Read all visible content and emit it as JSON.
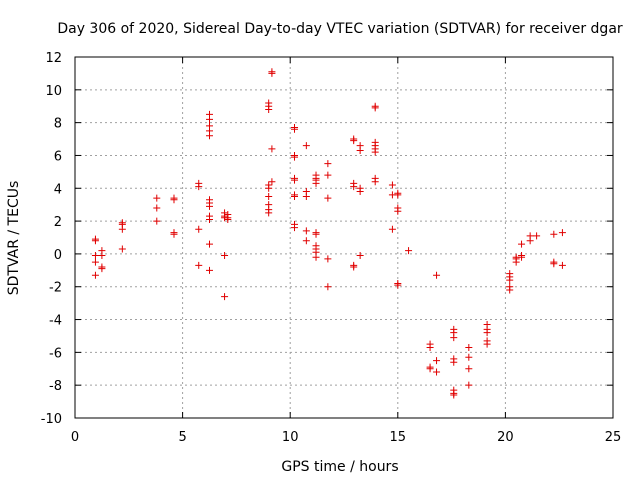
{
  "chart_data": {
    "type": "scatter",
    "title": "Day 306 of 2020, Sidereal Day-to-day VTEC variation (SDTVAR) for receiver dgar",
    "xlabel": "GPS time / hours",
    "ylabel": "SDTVAR / TECUs",
    "xlim": [
      0,
      25
    ],
    "ylim": [
      -10,
      12
    ],
    "grid": true,
    "marker": "+",
    "marker_color": "#e00000",
    "x_ticks": [
      0,
      5,
      10,
      15,
      20,
      25
    ],
    "y_ticks": [
      -10,
      -8,
      -6,
      -4,
      -2,
      0,
      2,
      4,
      6,
      8,
      10,
      12
    ],
    "series": [
      {
        "name": "SDTVAR",
        "points": [
          [
            0.95,
            0.9
          ],
          [
            0.95,
            0.8
          ],
          [
            0.95,
            -0.1
          ],
          [
            0.95,
            -0.5
          ],
          [
            0.95,
            -1.3
          ],
          [
            1.25,
            0.2
          ],
          [
            1.25,
            -0.1
          ],
          [
            1.25,
            -0.8
          ],
          [
            1.25,
            -0.9
          ],
          [
            2.2,
            1.9
          ],
          [
            2.2,
            1.8
          ],
          [
            2.2,
            1.5
          ],
          [
            2.2,
            0.3
          ],
          [
            3.8,
            3.4
          ],
          [
            3.8,
            2.8
          ],
          [
            3.8,
            2.0
          ],
          [
            4.6,
            3.4
          ],
          [
            4.6,
            3.3
          ],
          [
            4.6,
            1.3
          ],
          [
            4.6,
            1.2
          ],
          [
            5.75,
            4.3
          ],
          [
            5.75,
            4.1
          ],
          [
            5.75,
            1.5
          ],
          [
            5.75,
            -0.7
          ],
          [
            6.25,
            8.5
          ],
          [
            6.25,
            8.2
          ],
          [
            6.25,
            7.8
          ],
          [
            6.25,
            7.5
          ],
          [
            6.25,
            7.2
          ],
          [
            6.25,
            3.3
          ],
          [
            6.25,
            3.1
          ],
          [
            6.25,
            2.9
          ],
          [
            6.25,
            2.3
          ],
          [
            6.25,
            2.1
          ],
          [
            6.25,
            0.6
          ],
          [
            6.25,
            -1.0
          ],
          [
            6.95,
            2.5
          ],
          [
            6.95,
            2.3
          ],
          [
            6.95,
            2.2
          ],
          [
            6.95,
            -0.1
          ],
          [
            6.95,
            -2.6
          ],
          [
            7.1,
            2.4
          ],
          [
            7.1,
            2.2
          ],
          [
            7.1,
            2.1
          ],
          [
            9.0,
            9.2
          ],
          [
            9.0,
            9.0
          ],
          [
            9.0,
            8.8
          ],
          [
            9.0,
            4.2
          ],
          [
            9.0,
            4.0
          ],
          [
            9.0,
            3.5
          ],
          [
            9.0,
            3.0
          ],
          [
            9.0,
            2.7
          ],
          [
            9.0,
            2.5
          ],
          [
            9.15,
            11.1
          ],
          [
            9.15,
            11.0
          ],
          [
            9.15,
            6.4
          ],
          [
            9.15,
            4.4
          ],
          [
            10.2,
            7.7
          ],
          [
            10.2,
            7.6
          ],
          [
            10.2,
            6.0
          ],
          [
            10.2,
            5.9
          ],
          [
            10.2,
            4.6
          ],
          [
            10.2,
            4.5
          ],
          [
            10.2,
            3.6
          ],
          [
            10.2,
            3.5
          ],
          [
            10.2,
            1.8
          ],
          [
            10.2,
            1.6
          ],
          [
            10.75,
            6.6
          ],
          [
            10.75,
            3.8
          ],
          [
            10.75,
            3.5
          ],
          [
            10.75,
            1.4
          ],
          [
            10.75,
            0.8
          ],
          [
            11.2,
            4.8
          ],
          [
            11.2,
            4.6
          ],
          [
            11.2,
            4.5
          ],
          [
            11.2,
            4.3
          ],
          [
            11.2,
            1.3
          ],
          [
            11.2,
            1.2
          ],
          [
            11.2,
            0.5
          ],
          [
            11.2,
            0.3
          ],
          [
            11.2,
            0.1
          ],
          [
            11.2,
            -0.2
          ],
          [
            11.75,
            5.5
          ],
          [
            11.75,
            4.8
          ],
          [
            11.75,
            3.4
          ],
          [
            11.75,
            -0.3
          ],
          [
            11.75,
            -2.0
          ],
          [
            12.95,
            7.0
          ],
          [
            12.95,
            6.9
          ],
          [
            12.95,
            4.3
          ],
          [
            12.95,
            4.1
          ],
          [
            12.95,
            -0.7
          ],
          [
            12.95,
            -0.8
          ],
          [
            13.25,
            6.6
          ],
          [
            13.25,
            6.3
          ],
          [
            13.25,
            4.0
          ],
          [
            13.25,
            3.8
          ],
          [
            13.25,
            -0.1
          ],
          [
            13.95,
            9.0
          ],
          [
            13.95,
            8.9
          ],
          [
            13.95,
            6.8
          ],
          [
            13.95,
            6.6
          ],
          [
            13.95,
            6.4
          ],
          [
            13.95,
            6.2
          ],
          [
            13.95,
            4.6
          ],
          [
            13.95,
            4.4
          ],
          [
            14.75,
            4.2
          ],
          [
            14.75,
            3.6
          ],
          [
            14.75,
            1.5
          ],
          [
            15.0,
            3.7
          ],
          [
            15.0,
            3.6
          ],
          [
            15.0,
            2.8
          ],
          [
            15.0,
            2.6
          ],
          [
            15.0,
            -1.8
          ],
          [
            15.0,
            -1.9
          ],
          [
            15.5,
            0.2
          ],
          [
            16.5,
            -5.5
          ],
          [
            16.5,
            -5.7
          ],
          [
            16.5,
            -6.9
          ],
          [
            16.5,
            -7.0
          ],
          [
            16.8,
            -1.3
          ],
          [
            16.8,
            -6.5
          ],
          [
            16.8,
            -7.2
          ],
          [
            17.6,
            -4.6
          ],
          [
            17.6,
            -4.8
          ],
          [
            17.6,
            -5.1
          ],
          [
            17.6,
            -6.4
          ],
          [
            17.6,
            -6.6
          ],
          [
            17.6,
            -8.3
          ],
          [
            17.6,
            -8.5
          ],
          [
            17.6,
            -8.6
          ],
          [
            18.3,
            -5.7
          ],
          [
            18.3,
            -6.3
          ],
          [
            18.3,
            -7.0
          ],
          [
            18.3,
            -8.0
          ],
          [
            19.15,
            -4.3
          ],
          [
            19.15,
            -4.6
          ],
          [
            19.15,
            -4.8
          ],
          [
            19.15,
            -5.3
          ],
          [
            19.15,
            -5.5
          ],
          [
            20.2,
            -1.2
          ],
          [
            20.2,
            -1.4
          ],
          [
            20.2,
            -1.6
          ],
          [
            20.2,
            -2.0
          ],
          [
            20.2,
            -2.2
          ],
          [
            20.5,
            -0.2
          ],
          [
            20.5,
            -0.3
          ],
          [
            20.5,
            -0.5
          ],
          [
            20.75,
            0.6
          ],
          [
            20.75,
            -0.1
          ],
          [
            20.75,
            -0.2
          ],
          [
            21.15,
            1.1
          ],
          [
            21.15,
            0.8
          ],
          [
            21.45,
            1.1
          ],
          [
            22.25,
            1.2
          ],
          [
            22.25,
            -0.5
          ],
          [
            22.25,
            -0.6
          ],
          [
            22.65,
            1.3
          ],
          [
            22.65,
            -0.7
          ]
        ]
      }
    ]
  }
}
